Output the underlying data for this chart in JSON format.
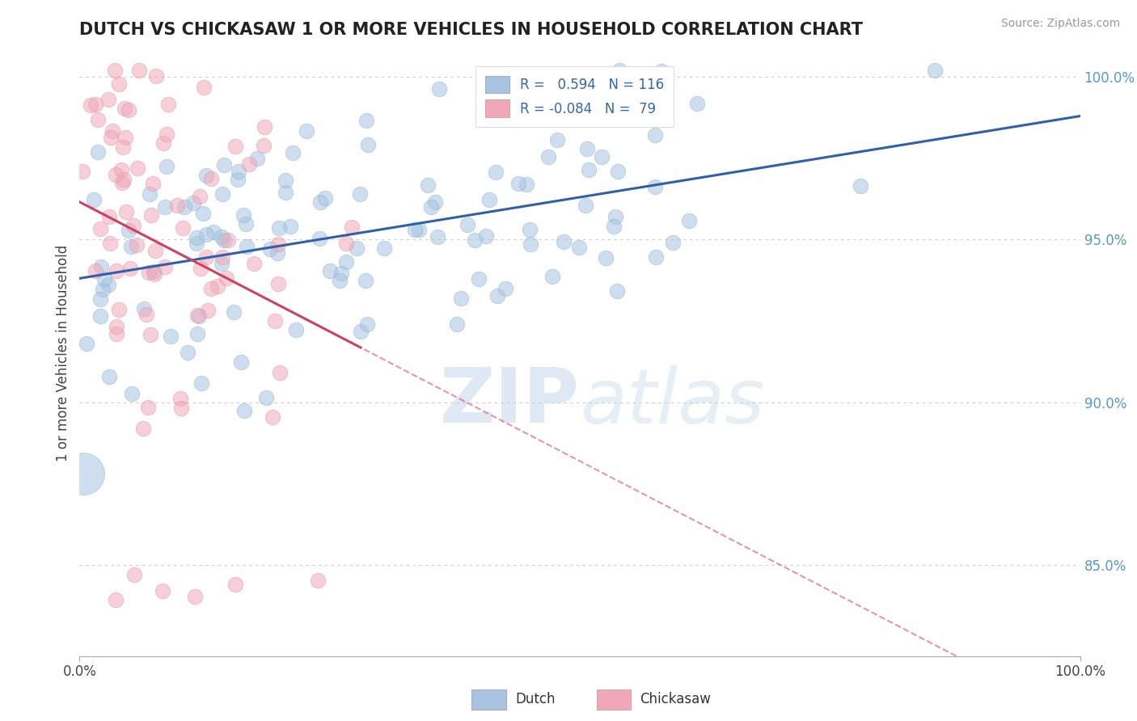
{
  "title": "DUTCH VS CHICKASAW 1 OR MORE VEHICLES IN HOUSEHOLD CORRELATION CHART",
  "ylabel": "1 or more Vehicles in Household",
  "source_text": "Source: ZipAtlas.com",
  "watermark_zip": "ZIP",
  "watermark_atlas": "atlas",
  "xmin": 0.0,
  "xmax": 1.0,
  "ymin": 0.822,
  "ymax": 1.008,
  "yticks": [
    0.85,
    0.9,
    0.95,
    1.0
  ],
  "ytick_labels": [
    "85.0%",
    "90.0%",
    "95.0%",
    "100.0%"
  ],
  "xtick_labels": [
    "0.0%",
    "100.0%"
  ],
  "dutch_R": 0.594,
  "dutch_N": 116,
  "chickasaw_R": -0.084,
  "chickasaw_N": 79,
  "dutch_color": "#a8c4e0",
  "dutch_edge_color": "#7aaad0",
  "dutch_line_color": "#3060a8",
  "chickasaw_color": "#f0a8b8",
  "chickasaw_edge_color": "#e088a0",
  "chickasaw_line_color": "#d04060",
  "legend_dutch_label": "Dutch",
  "legend_chickasaw_label": "Chickasaw",
  "dot_size": 180,
  "big_dot_size": 1400
}
